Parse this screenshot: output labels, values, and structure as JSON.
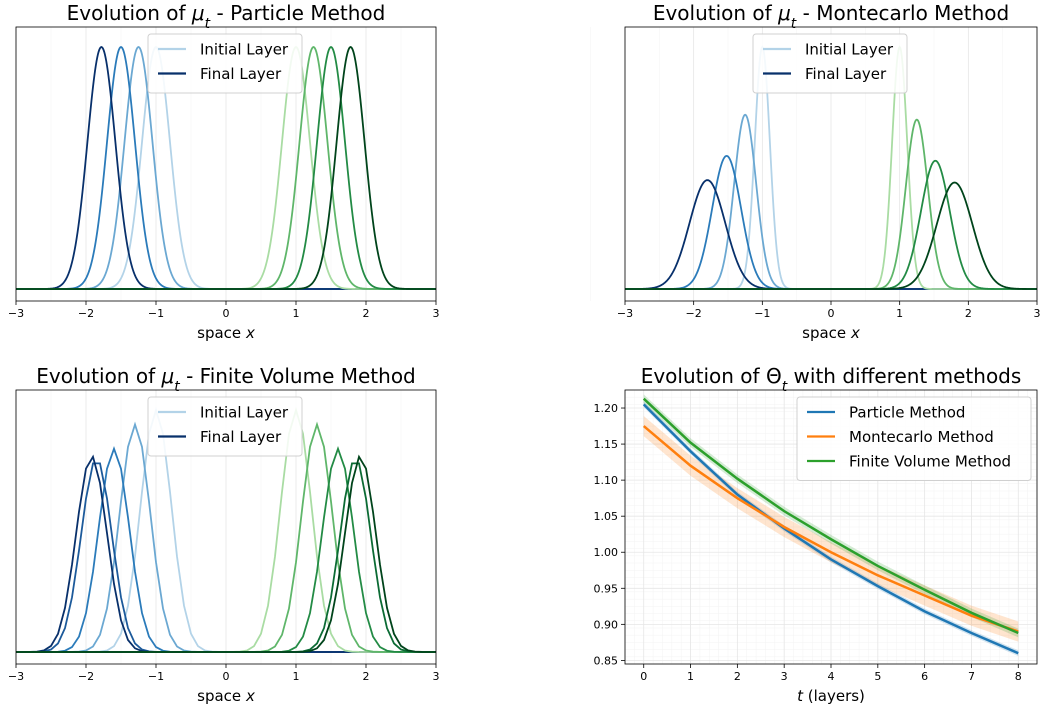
{
  "chart_data": [
    {
      "type": "line",
      "title": "Evolution of μ_t - Particle Method",
      "title_parts": [
        "Evolution of ",
        "μ",
        "t",
        " - Particle Method"
      ],
      "xlabel_parts": [
        "space ",
        "x"
      ],
      "xlim": [
        -3,
        3
      ],
      "xticks": [
        -3,
        -2,
        -1,
        0,
        1,
        2,
        3
      ],
      "tick_labels": [
        "−3",
        "−2",
        "−1",
        "0",
        "1",
        "2",
        "3"
      ],
      "legend": {
        "position": "top-center",
        "entries": [
          {
            "label": "Initial Layer",
            "color": "#b3d3e8"
          },
          {
            "label": "Final Layer",
            "color": "#08306b"
          }
        ]
      },
      "style": "smooth",
      "series": [
        {
          "color": "#b3d3e8",
          "mu": -1.0,
          "sigma": 0.2,
          "peak": 1.0
        },
        {
          "color": "#6ba8d2",
          "mu": -1.25,
          "sigma": 0.2,
          "peak": 1.0
        },
        {
          "color": "#2b7bba",
          "mu": -1.5,
          "sigma": 0.2,
          "peak": 1.0
        },
        {
          "color": "#08306b",
          "mu": -1.78,
          "sigma": 0.2,
          "peak": 1.0
        },
        {
          "color": "#a9dca3",
          "mu": 1.0,
          "sigma": 0.2,
          "peak": 1.0
        },
        {
          "color": "#5fb66a",
          "mu": 1.25,
          "sigma": 0.2,
          "peak": 1.0
        },
        {
          "color": "#238b45",
          "mu": 1.5,
          "sigma": 0.2,
          "peak": 1.0
        },
        {
          "color": "#00441b",
          "mu": 1.78,
          "sigma": 0.2,
          "peak": 1.0
        }
      ]
    },
    {
      "type": "line",
      "title": "Evolution of μ_t - Montecarlo Method",
      "title_parts": [
        "Evolution of ",
        "μ",
        "t",
        " - Montecarlo Method"
      ],
      "xlabel_parts": [
        "space ",
        "x"
      ],
      "xlim": [
        -3,
        3
      ],
      "xticks": [
        -3,
        -2,
        -1,
        0,
        1,
        2,
        3
      ],
      "tick_labels": [
        "−3",
        "−2",
        "−1",
        "0",
        "1",
        "2",
        "3"
      ],
      "legend": {
        "position": "top-center",
        "entries": [
          {
            "label": "Initial Layer",
            "color": "#b3d3e8"
          },
          {
            "label": "Final Layer",
            "color": "#08306b"
          }
        ]
      },
      "style": "smooth",
      "series": [
        {
          "color": "#b3d3e8",
          "mu": -1.0,
          "sigma": 0.11,
          "peak": 1.0
        },
        {
          "color": "#6ba8d2",
          "mu": -1.25,
          "sigma": 0.16,
          "peak": 0.72
        },
        {
          "color": "#2b7bba",
          "mu": -1.52,
          "sigma": 0.21,
          "peak": 0.55
        },
        {
          "color": "#08306b",
          "mu": -1.8,
          "sigma": 0.26,
          "peak": 0.45
        },
        {
          "color": "#a9dca3",
          "mu": 1.0,
          "sigma": 0.11,
          "peak": 1.0
        },
        {
          "color": "#5fb66a",
          "mu": 1.25,
          "sigma": 0.16,
          "peak": 0.7
        },
        {
          "color": "#238b45",
          "mu": 1.52,
          "sigma": 0.21,
          "peak": 0.53
        },
        {
          "color": "#00441b",
          "mu": 1.8,
          "sigma": 0.26,
          "peak": 0.44
        }
      ]
    },
    {
      "type": "line",
      "title": "Evolution of μ_t - Finite Volume Method",
      "title_parts": [
        "Evolution of ",
        "μ",
        "t",
        " - Finite Volume Method"
      ],
      "xlabel_parts": [
        "space ",
        "x"
      ],
      "xlim": [
        -3,
        3
      ],
      "xticks": [
        -3,
        -2,
        -1,
        0,
        1,
        2,
        3
      ],
      "tick_labels": [
        "−3",
        "−2",
        "−1",
        "0",
        "1",
        "2",
        "3"
      ],
      "legend": {
        "position": "top-center",
        "entries": [
          {
            "label": "Initial Layer",
            "color": "#b3d3e8"
          },
          {
            "label": "Final Layer",
            "color": "#08306b"
          }
        ]
      },
      "style": "piecewise",
      "series": [
        {
          "color": "#b3d3e8",
          "mu": -1.0,
          "sigma": 0.22,
          "peak": 1.0
        },
        {
          "color": "#6ba8d2",
          "mu": -1.3,
          "sigma": 0.22,
          "peak": 0.94
        },
        {
          "color": "#2b7bba",
          "mu": -1.6,
          "sigma": 0.22,
          "peak": 0.84
        },
        {
          "color": "#1c5a9b",
          "mu": -1.85,
          "sigma": 0.22,
          "peak": 0.8
        },
        {
          "color": "#08306b",
          "mu": -1.92,
          "sigma": 0.22,
          "peak": 0.81
        },
        {
          "color": "#a9dca3",
          "mu": 1.0,
          "sigma": 0.22,
          "peak": 1.0
        },
        {
          "color": "#5fb66a",
          "mu": 1.3,
          "sigma": 0.22,
          "peak": 0.94
        },
        {
          "color": "#238b45",
          "mu": 1.6,
          "sigma": 0.22,
          "peak": 0.84
        },
        {
          "color": "#0b6b34",
          "mu": 1.85,
          "sigma": 0.22,
          "peak": 0.8
        },
        {
          "color": "#00441b",
          "mu": 1.92,
          "sigma": 0.22,
          "peak": 0.81
        }
      ]
    },
    {
      "type": "line",
      "title": "Evolution of Θ_t with different methods",
      "title_parts": [
        "Evolution of ",
        "Θ",
        "t",
        " with different methods"
      ],
      "xlabel_parts": [
        "t",
        " (layers)"
      ],
      "xlim": [
        -0.4,
        8.4
      ],
      "ylim": [
        0.845,
        1.225
      ],
      "grid": true,
      "xticks": [
        0,
        1,
        2,
        3,
        4,
        5,
        6,
        7,
        8
      ],
      "tick_labels": [
        "0",
        "1",
        "2",
        "3",
        "4",
        "5",
        "6",
        "7",
        "8"
      ],
      "yticks": [
        0.85,
        0.9,
        0.95,
        1.0,
        1.05,
        1.1,
        1.15,
        1.2
      ],
      "ytick_labels": [
        "0.85",
        "0.90",
        "0.95",
        "1.00",
        "1.05",
        "1.10",
        "1.15",
        "1.20"
      ],
      "legend": {
        "position": "top-right",
        "entries": [
          {
            "label": "Particle Method",
            "color": "#1f77b4"
          },
          {
            "label": "Montecarlo Method",
            "color": "#ff7f0e"
          },
          {
            "label": "Finite Volume Method",
            "color": "#2ca02c"
          }
        ]
      },
      "x": [
        0,
        1,
        2,
        3,
        4,
        5,
        6,
        7,
        8
      ],
      "series": [
        {
          "name": "Particle Method",
          "color": "#1f77b4",
          "values": [
            1.205,
            1.14,
            1.08,
            1.033,
            0.99,
            0.953,
            0.918,
            0.888,
            0.86
          ],
          "band": 0.004
        },
        {
          "name": "Montecarlo Method",
          "color": "#ff7f0e",
          "values": [
            1.175,
            1.12,
            1.075,
            1.035,
            1.0,
            0.968,
            0.94,
            0.912,
            0.89
          ],
          "band": 0.014
        },
        {
          "name": "Finite Volume Method",
          "color": "#2ca02c",
          "values": [
            1.213,
            1.152,
            1.102,
            1.057,
            1.018,
            0.981,
            0.948,
            0.916,
            0.888
          ],
          "band": 0.006
        }
      ]
    }
  ]
}
